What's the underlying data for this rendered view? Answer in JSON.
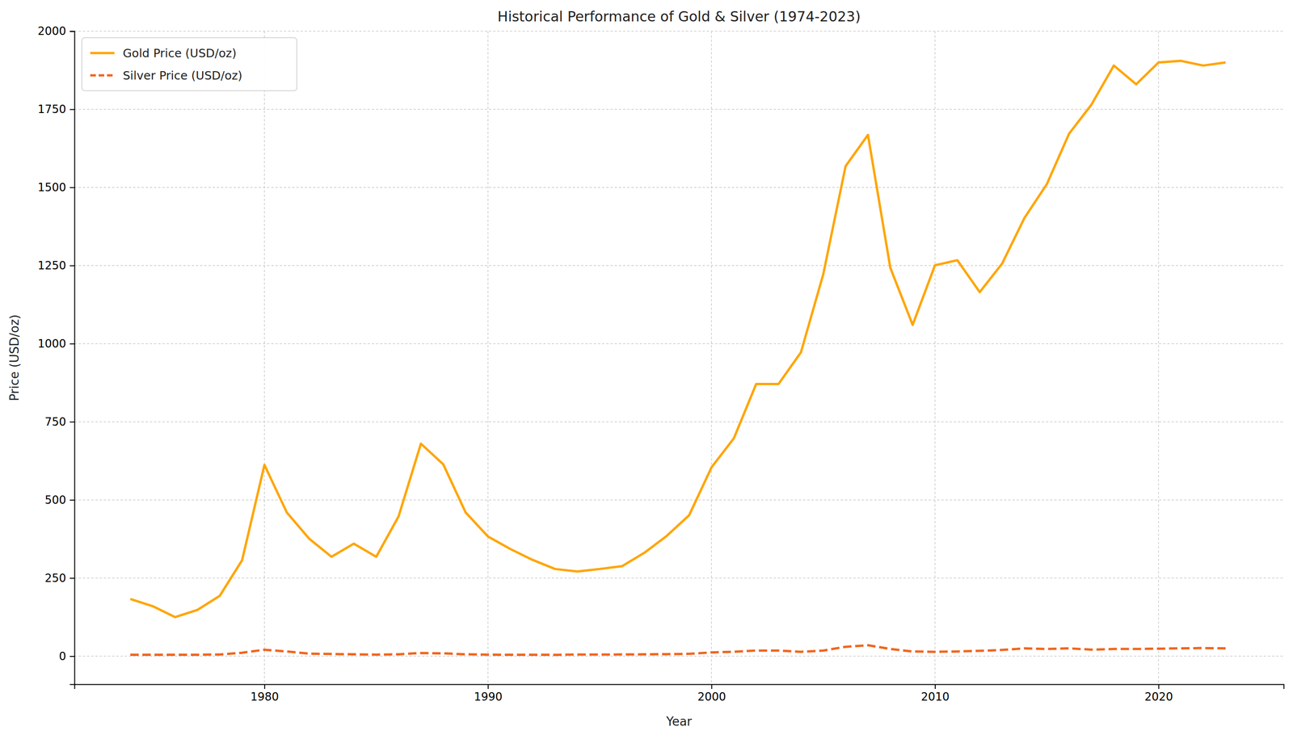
{
  "chart_data": {
    "type": "line",
    "title": "Historical Performance of Gold & Silver (1974-2023)",
    "x_label": "Year",
    "y_label": "Price (USD/oz)",
    "x": [
      1974,
      1975,
      1976,
      1977,
      1978,
      1979,
      1980,
      1981,
      1982,
      1983,
      1984,
      1985,
      1986,
      1987,
      1988,
      1989,
      1990,
      1991,
      1992,
      1993,
      1994,
      1995,
      1996,
      1997,
      1998,
      1999,
      2000,
      2001,
      2002,
      2003,
      2004,
      2005,
      2006,
      2007,
      2008,
      2009,
      2010,
      2011,
      2012,
      2013,
      2014,
      2015,
      2016,
      2017,
      2018,
      2019,
      2020,
      2021,
      2022,
      2023
    ],
    "series": [
      {
        "name": "Gold Price (USD/oz)",
        "color": "#ffa500",
        "line_style": "solid",
        "values": [
          183,
          160,
          125,
          148,
          193,
          307,
          612,
          460,
          376,
          318,
          360,
          318,
          447,
          680,
          614,
          460,
          383,
          343,
          308,
          279,
          271,
          279,
          288,
          331,
          385,
          451,
          604,
          697,
          871,
          871,
          972,
          1222,
          1568,
          1668,
          1243,
          1060,
          1251,
          1267,
          1165,
          1256,
          1402,
          1510,
          1672,
          1765,
          1890,
          1830,
          1900,
          1905,
          1890,
          1900
        ]
      },
      {
        "name": "Silver Price (USD/oz)",
        "color": "#f0661e",
        "line_style": "dashed",
        "values": [
          4.7,
          4.4,
          4.4,
          4.6,
          5.4,
          11,
          20.6,
          15,
          8,
          7,
          6,
          5,
          6,
          10,
          9,
          6,
          5,
          4.5,
          4.5,
          4.3,
          5.3,
          5.2,
          5.5,
          5.9,
          6.5,
          7.5,
          12,
          14,
          18,
          18,
          14,
          18,
          30,
          35,
          23,
          15,
          14,
          15,
          17,
          20,
          25,
          23,
          25,
          21,
          23,
          23,
          24,
          25,
          26,
          25
        ]
      }
    ],
    "xlim": [
      1971.5,
      2025.6
    ],
    "xticks": [
      1980,
      1990,
      2000,
      2010,
      2020
    ],
    "ylim": [
      -90,
      2000
    ],
    "yticks": [
      0,
      250,
      500,
      750,
      1000,
      1250,
      1500,
      1750,
      2000
    ],
    "grid": true,
    "legend": "upper left"
  }
}
